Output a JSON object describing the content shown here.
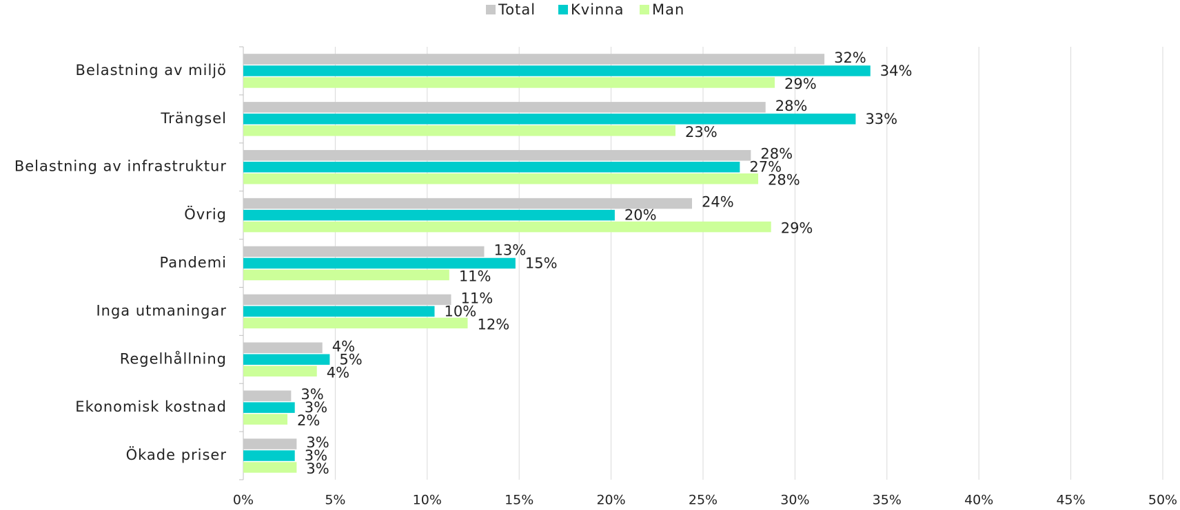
{
  "chart_data": {
    "type": "bar",
    "orientation": "horizontal",
    "categories": [
      "Belastning av miljö",
      "Trängsel",
      "Belastning av infrastruktur",
      "Övrig",
      "Pandemi",
      "Inga utmaningar",
      "Regelhållning",
      "Ekonomisk kostnad",
      "Ökade priser"
    ],
    "series": [
      {
        "name": "Total",
        "color": "#c9c9c9",
        "values": [
          31.6,
          28.4,
          27.6,
          24.4,
          13.1,
          11.3,
          4.3,
          2.6,
          2.9
        ],
        "value_labels": [
          "32%",
          "28%",
          "28%",
          "24%",
          "13%",
          "11%",
          "4%",
          "3%",
          "3%"
        ]
      },
      {
        "name": "Kvinna",
        "color": "#00cccc",
        "values": [
          34.1,
          33.3,
          27.0,
          20.2,
          14.8,
          10.4,
          4.7,
          2.8,
          2.8
        ],
        "value_labels": [
          "34%",
          "33%",
          "27%",
          "20%",
          "15%",
          "10%",
          "5%",
          "3%",
          "3%"
        ]
      },
      {
        "name": "Man",
        "color": "#ccff99",
        "values": [
          28.9,
          23.5,
          28.0,
          28.7,
          11.2,
          12.2,
          4.0,
          2.4,
          2.9
        ],
        "value_labels": [
          "29%",
          "23%",
          "28%",
          "29%",
          "11%",
          "12%",
          "4%",
          "2%",
          "3%"
        ]
      }
    ],
    "xlim": [
      0,
      50
    ],
    "xticks": [
      {
        "value": 0,
        "label": "0%"
      },
      {
        "value": 5,
        "label": "5%"
      },
      {
        "value": 10,
        "label": "10%"
      },
      {
        "value": 15,
        "label": "15%"
      },
      {
        "value": 20,
        "label": "20%"
      },
      {
        "value": 25,
        "label": "25%"
      },
      {
        "value": 30,
        "label": "30%"
      },
      {
        "value": 35,
        "label": "35%"
      },
      {
        "value": 40,
        "label": "40%"
      },
      {
        "value": 45,
        "label": "45%"
      },
      {
        "value": 50,
        "label": "50%"
      }
    ],
    "grid": true,
    "legend": "top"
  }
}
